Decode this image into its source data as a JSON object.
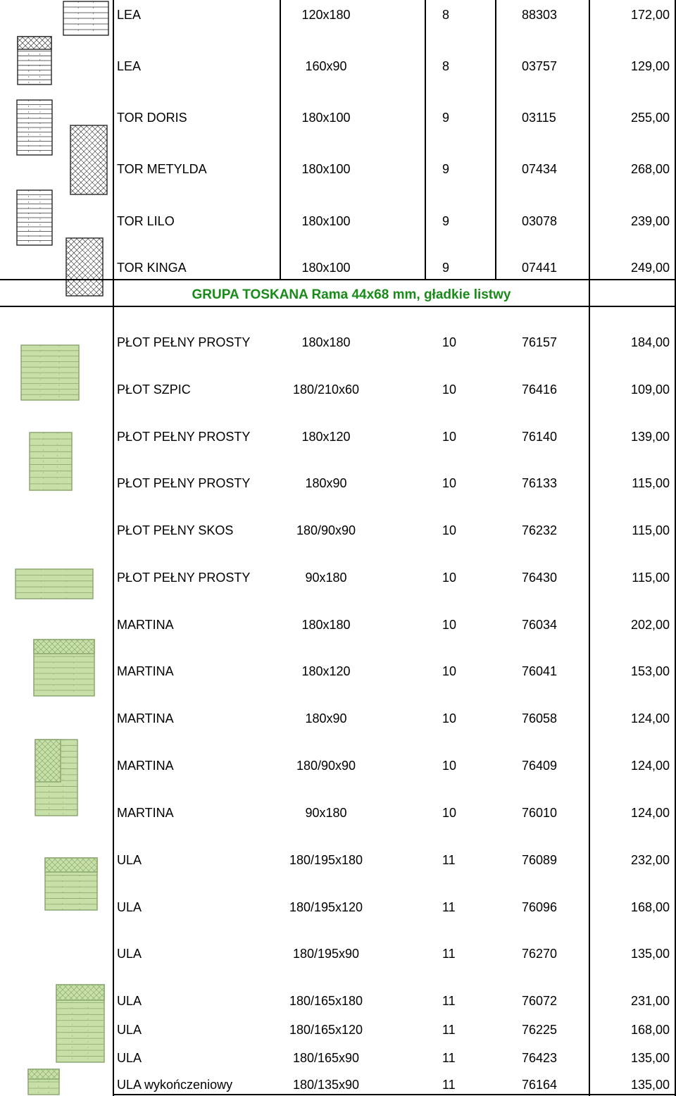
{
  "group_header": "GRUPA  TOSKANA Rama 44x68 mm, gładkie listwy",
  "rows": [
    {
      "name": "LEA",
      "size": "120x180",
      "page": "8",
      "code": "88303",
      "price": "172,00"
    },
    {
      "name": "LEA",
      "size": "160x90",
      "page": "8",
      "code": "03757",
      "price": "129,00"
    },
    {
      "name": "TOR DORIS",
      "size": "180x100",
      "page": "9",
      "code": "03115",
      "price": "255,00"
    },
    {
      "name": "TOR METYLDA",
      "size": "180x100",
      "page": "9",
      "code": "07434",
      "price": "268,00"
    },
    {
      "name": "TOR LILO",
      "size": "180x100",
      "page": "9",
      "code": "03078",
      "price": "239,00"
    },
    {
      "name": "TOR KINGA",
      "size": "180x100",
      "page": "9",
      "code": "07441",
      "price": "249,00"
    },
    {
      "name": "PŁOT PEŁNY PROSTY",
      "size": "180x180",
      "page": "10",
      "code": "76157",
      "price": "184,00"
    },
    {
      "name": "PŁOT  SZPIC",
      "size": "180/210x60",
      "page": "10",
      "code": "76416",
      "price": "109,00"
    },
    {
      "name": "PŁOT PEŁNY  PROSTY",
      "size": "180x120",
      "page": "10",
      "code": "76140",
      "price": "139,00"
    },
    {
      "name": "PŁOT  PEŁNY  PROSTY",
      "size": "180x90",
      "page": "10",
      "code": "76133",
      "price": "115,00"
    },
    {
      "name": "PŁOT PEŁNY SKOS",
      "size": "180/90x90",
      "page": "10",
      "code": "76232",
      "price": "115,00"
    },
    {
      "name": "PŁOT PEŁNY PROSTY",
      "size": "90x180",
      "page": "10",
      "code": "76430",
      "price": "115,00"
    },
    {
      "name": "MARTINA",
      "size": "180x180",
      "page": "10",
      "code": "76034",
      "price": "202,00"
    },
    {
      "name": "MARTINA",
      "size": "180x120",
      "page": "10",
      "code": "76041",
      "price": "153,00"
    },
    {
      "name": "MARTINA",
      "size": "180x90",
      "page": "10",
      "code": "76058",
      "price": "124,00"
    },
    {
      "name": "MARTINA",
      "size": "180/90x90",
      "page": "10",
      "code": "76409",
      "price": "124,00"
    },
    {
      "name": "MARTINA",
      "size": "90x180",
      "page": "10",
      "code": "76010",
      "price": "124,00"
    },
    {
      "name": "ULA",
      "size": "180/195x180",
      "page": "11",
      "code": "76089",
      "price": "232,00"
    },
    {
      "name": "ULA",
      "size": "180/195x120",
      "page": "11",
      "code": "76096",
      "price": "168,00"
    },
    {
      "name": "ULA",
      "size": "180/195x90",
      "page": "11",
      "code": "76270",
      "price": "135,00"
    },
    {
      "name": "ULA",
      "size": "180/165x180",
      "page": "11",
      "code": "76072",
      "price": "231,00"
    },
    {
      "name": "ULA",
      "size": "180/165x120",
      "page": "11",
      "code": "76225",
      "price": "168,00"
    },
    {
      "name": "ULA",
      "size": "180/165x90",
      "page": "11",
      "code": "76423",
      "price": "135,00"
    },
    {
      "name": "ULA  wykończeniowy",
      "size": "180/135x90",
      "page": "11",
      "code": "76164",
      "price": "135,00"
    }
  ],
  "colors": {
    "group_header": "#1a8a1a",
    "panel_green": "#c8e0a8",
    "panel_stroke": "#8aa870",
    "bw_stroke": "#333333"
  },
  "icons": [
    "fence-panel-bw-icon",
    "fence-panel-green-icon",
    "fence-panel-lattice-icon"
  ]
}
